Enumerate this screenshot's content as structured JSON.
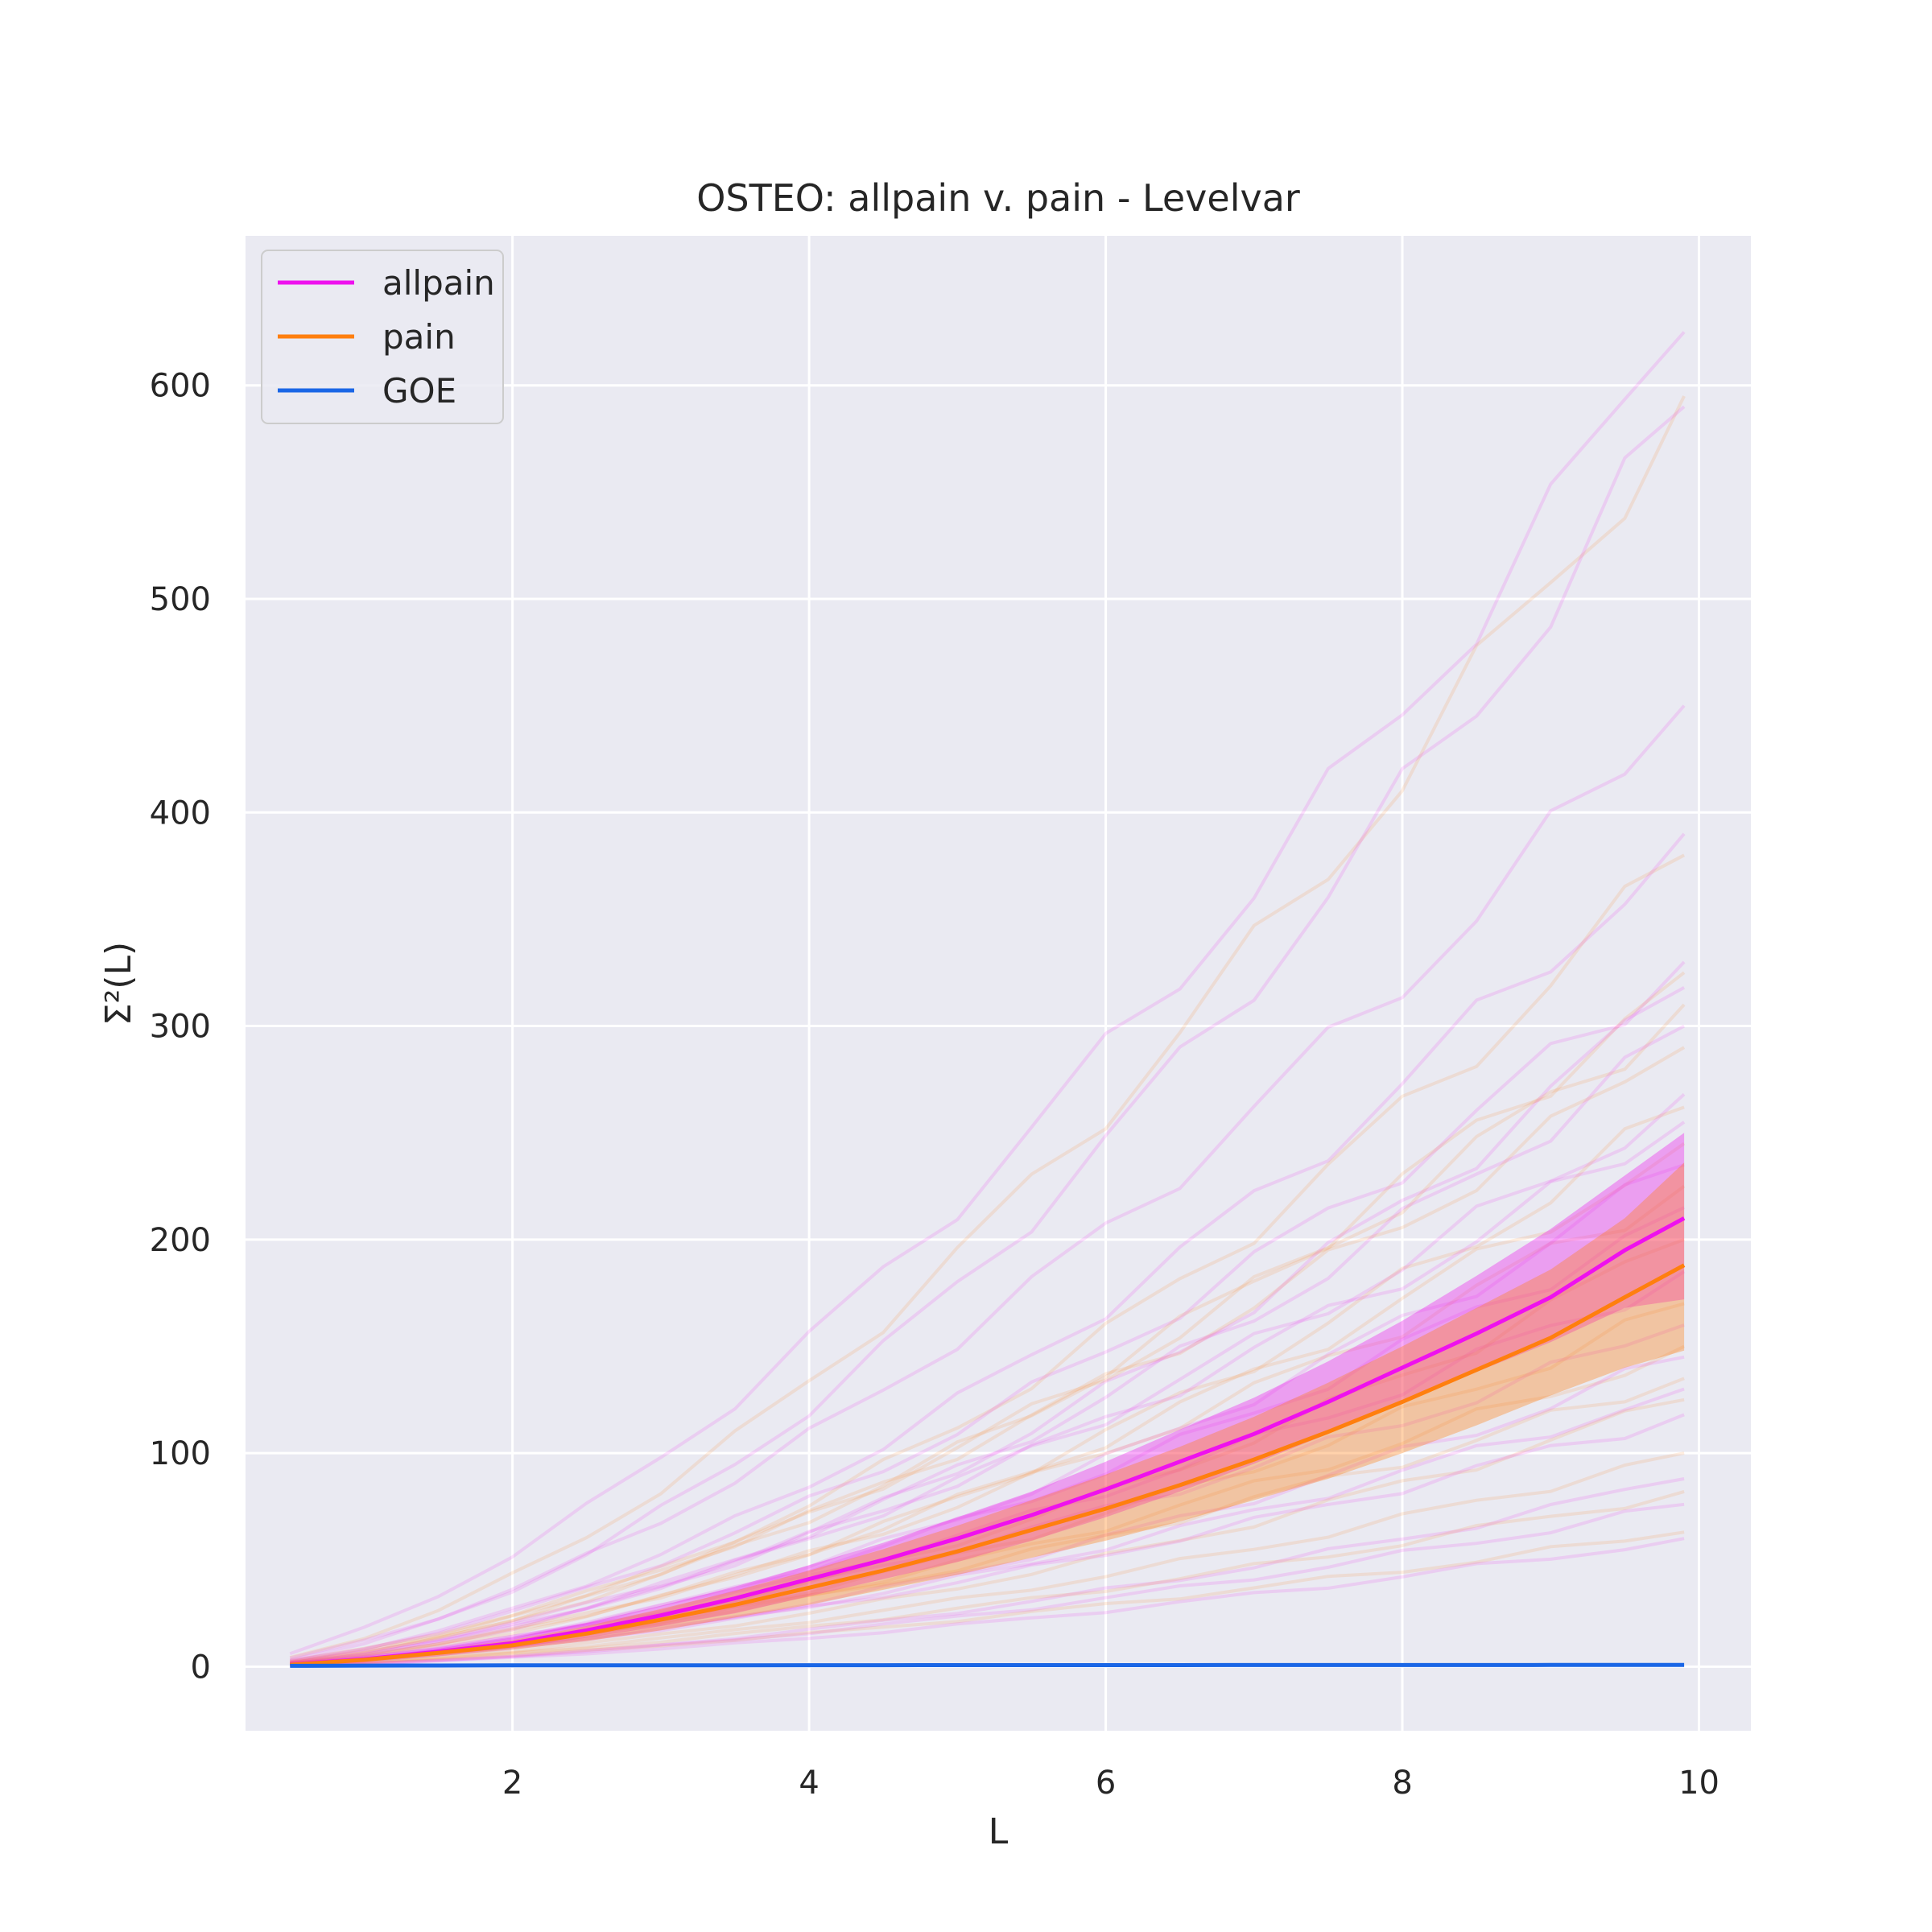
{
  "chart_data": {
    "type": "line",
    "title": "OSTEO: allpain v. pain - Levelvar",
    "xlabel": "L",
    "ylabel": "Σ²(L)",
    "xlim": [
      0.2,
      10.35
    ],
    "ylim": [
      -30,
      670
    ],
    "xticks": [
      2,
      4,
      6,
      8,
      10
    ],
    "yticks": [
      0,
      100,
      200,
      300,
      400,
      500,
      600
    ],
    "grid": true,
    "legend_position": "top-left",
    "x": [
      0.5,
      1.0,
      1.5,
      2.0,
      2.5,
      3.0,
      3.5,
      4.0,
      4.5,
      5.0,
      5.5,
      6.0,
      6.5,
      7.0,
      7.5,
      8.0,
      8.5,
      9.0,
      9.5,
      9.9
    ],
    "series": [
      {
        "name": "allpain",
        "color": "#ee11ee",
        "values": [
          1,
          3.5,
          7,
          11,
          17,
          24,
          32,
          41,
          50,
          60,
          71,
          83,
          96,
          109,
          124,
          140,
          156,
          173,
          195,
          210
        ],
        "band_lower": [
          0.8,
          2.8,
          5.5,
          8.8,
          13.5,
          19,
          25,
          33,
          41,
          49,
          59,
          70,
          82,
          95,
          109,
          124,
          138,
          152,
          168,
          172
        ],
        "band_upper": [
          1.2,
          4.2,
          8.5,
          13.5,
          20.5,
          28.5,
          37.5,
          47.5,
          58,
          70,
          82,
          96,
          111,
          126,
          143,
          162,
          183,
          205,
          230,
          250
        ]
      },
      {
        "name": "pain",
        "color": "#ff7f0e",
        "values": [
          0.9,
          3.2,
          6.5,
          10,
          15.5,
          22,
          29,
          37,
          45,
          54,
          64,
          74,
          85,
          97,
          110,
          124,
          139,
          154,
          173,
          188
        ],
        "band_lower": [
          0.7,
          2.5,
          5,
          8,
          12,
          17,
          23,
          29,
          36,
          43,
          51,
          59,
          68,
          78,
          88,
          100,
          113,
          127,
          140,
          148
        ],
        "band_upper": [
          1.1,
          3.9,
          8,
          12.5,
          19,
          27,
          35.5,
          45,
          55,
          66,
          78,
          90,
          103,
          117,
          133,
          150,
          168,
          186,
          210,
          236
        ]
      },
      {
        "name": "GOE",
        "color": "#1a66e6",
        "values": [
          0.4,
          0.5,
          0.55,
          0.6,
          0.62,
          0.64,
          0.66,
          0.68,
          0.7,
          0.71,
          0.72,
          0.73,
          0.74,
          0.75,
          0.76,
          0.77,
          0.77,
          0.78,
          0.78,
          0.79
        ]
      }
    ],
    "individual_curve_endpoints": [
      {
        "group": "allpain",
        "end": 625
      },
      {
        "group": "pain",
        "end": 595
      },
      {
        "group": "allpain",
        "end": 590
      },
      {
        "group": "allpain",
        "end": 450
      },
      {
        "group": "allpain",
        "end": 390
      },
      {
        "group": "pain",
        "end": 380
      },
      {
        "group": "allpain",
        "end": 330
      },
      {
        "group": "pain",
        "end": 325
      },
      {
        "group": "allpain",
        "end": 318
      },
      {
        "group": "pain",
        "end": 310
      },
      {
        "group": "allpain",
        "end": 300
      },
      {
        "group": "pain",
        "end": 290
      },
      {
        "group": "allpain",
        "end": 268
      },
      {
        "group": "pain",
        "end": 262
      },
      {
        "group": "allpain",
        "end": 255
      },
      {
        "group": "pain",
        "end": 245
      },
      {
        "group": "allpain",
        "end": 235
      },
      {
        "group": "pain",
        "end": 225
      },
      {
        "group": "allpain",
        "end": 215
      },
      {
        "group": "pain",
        "end": 200
      },
      {
        "group": "allpain",
        "end": 185
      },
      {
        "group": "pain",
        "end": 170
      },
      {
        "group": "allpain",
        "end": 160
      },
      {
        "group": "pain",
        "end": 150
      },
      {
        "group": "allpain",
        "end": 145
      },
      {
        "group": "pain",
        "end": 135
      },
      {
        "group": "allpain",
        "end": 130
      },
      {
        "group": "pain",
        "end": 125
      },
      {
        "group": "allpain",
        "end": 118
      },
      {
        "group": "pain",
        "end": 100
      },
      {
        "group": "allpain",
        "end": 88
      },
      {
        "group": "pain",
        "end": 82
      },
      {
        "group": "allpain",
        "end": 76
      },
      {
        "group": "pain",
        "end": 63
      },
      {
        "group": "allpain",
        "end": 60
      }
    ]
  }
}
